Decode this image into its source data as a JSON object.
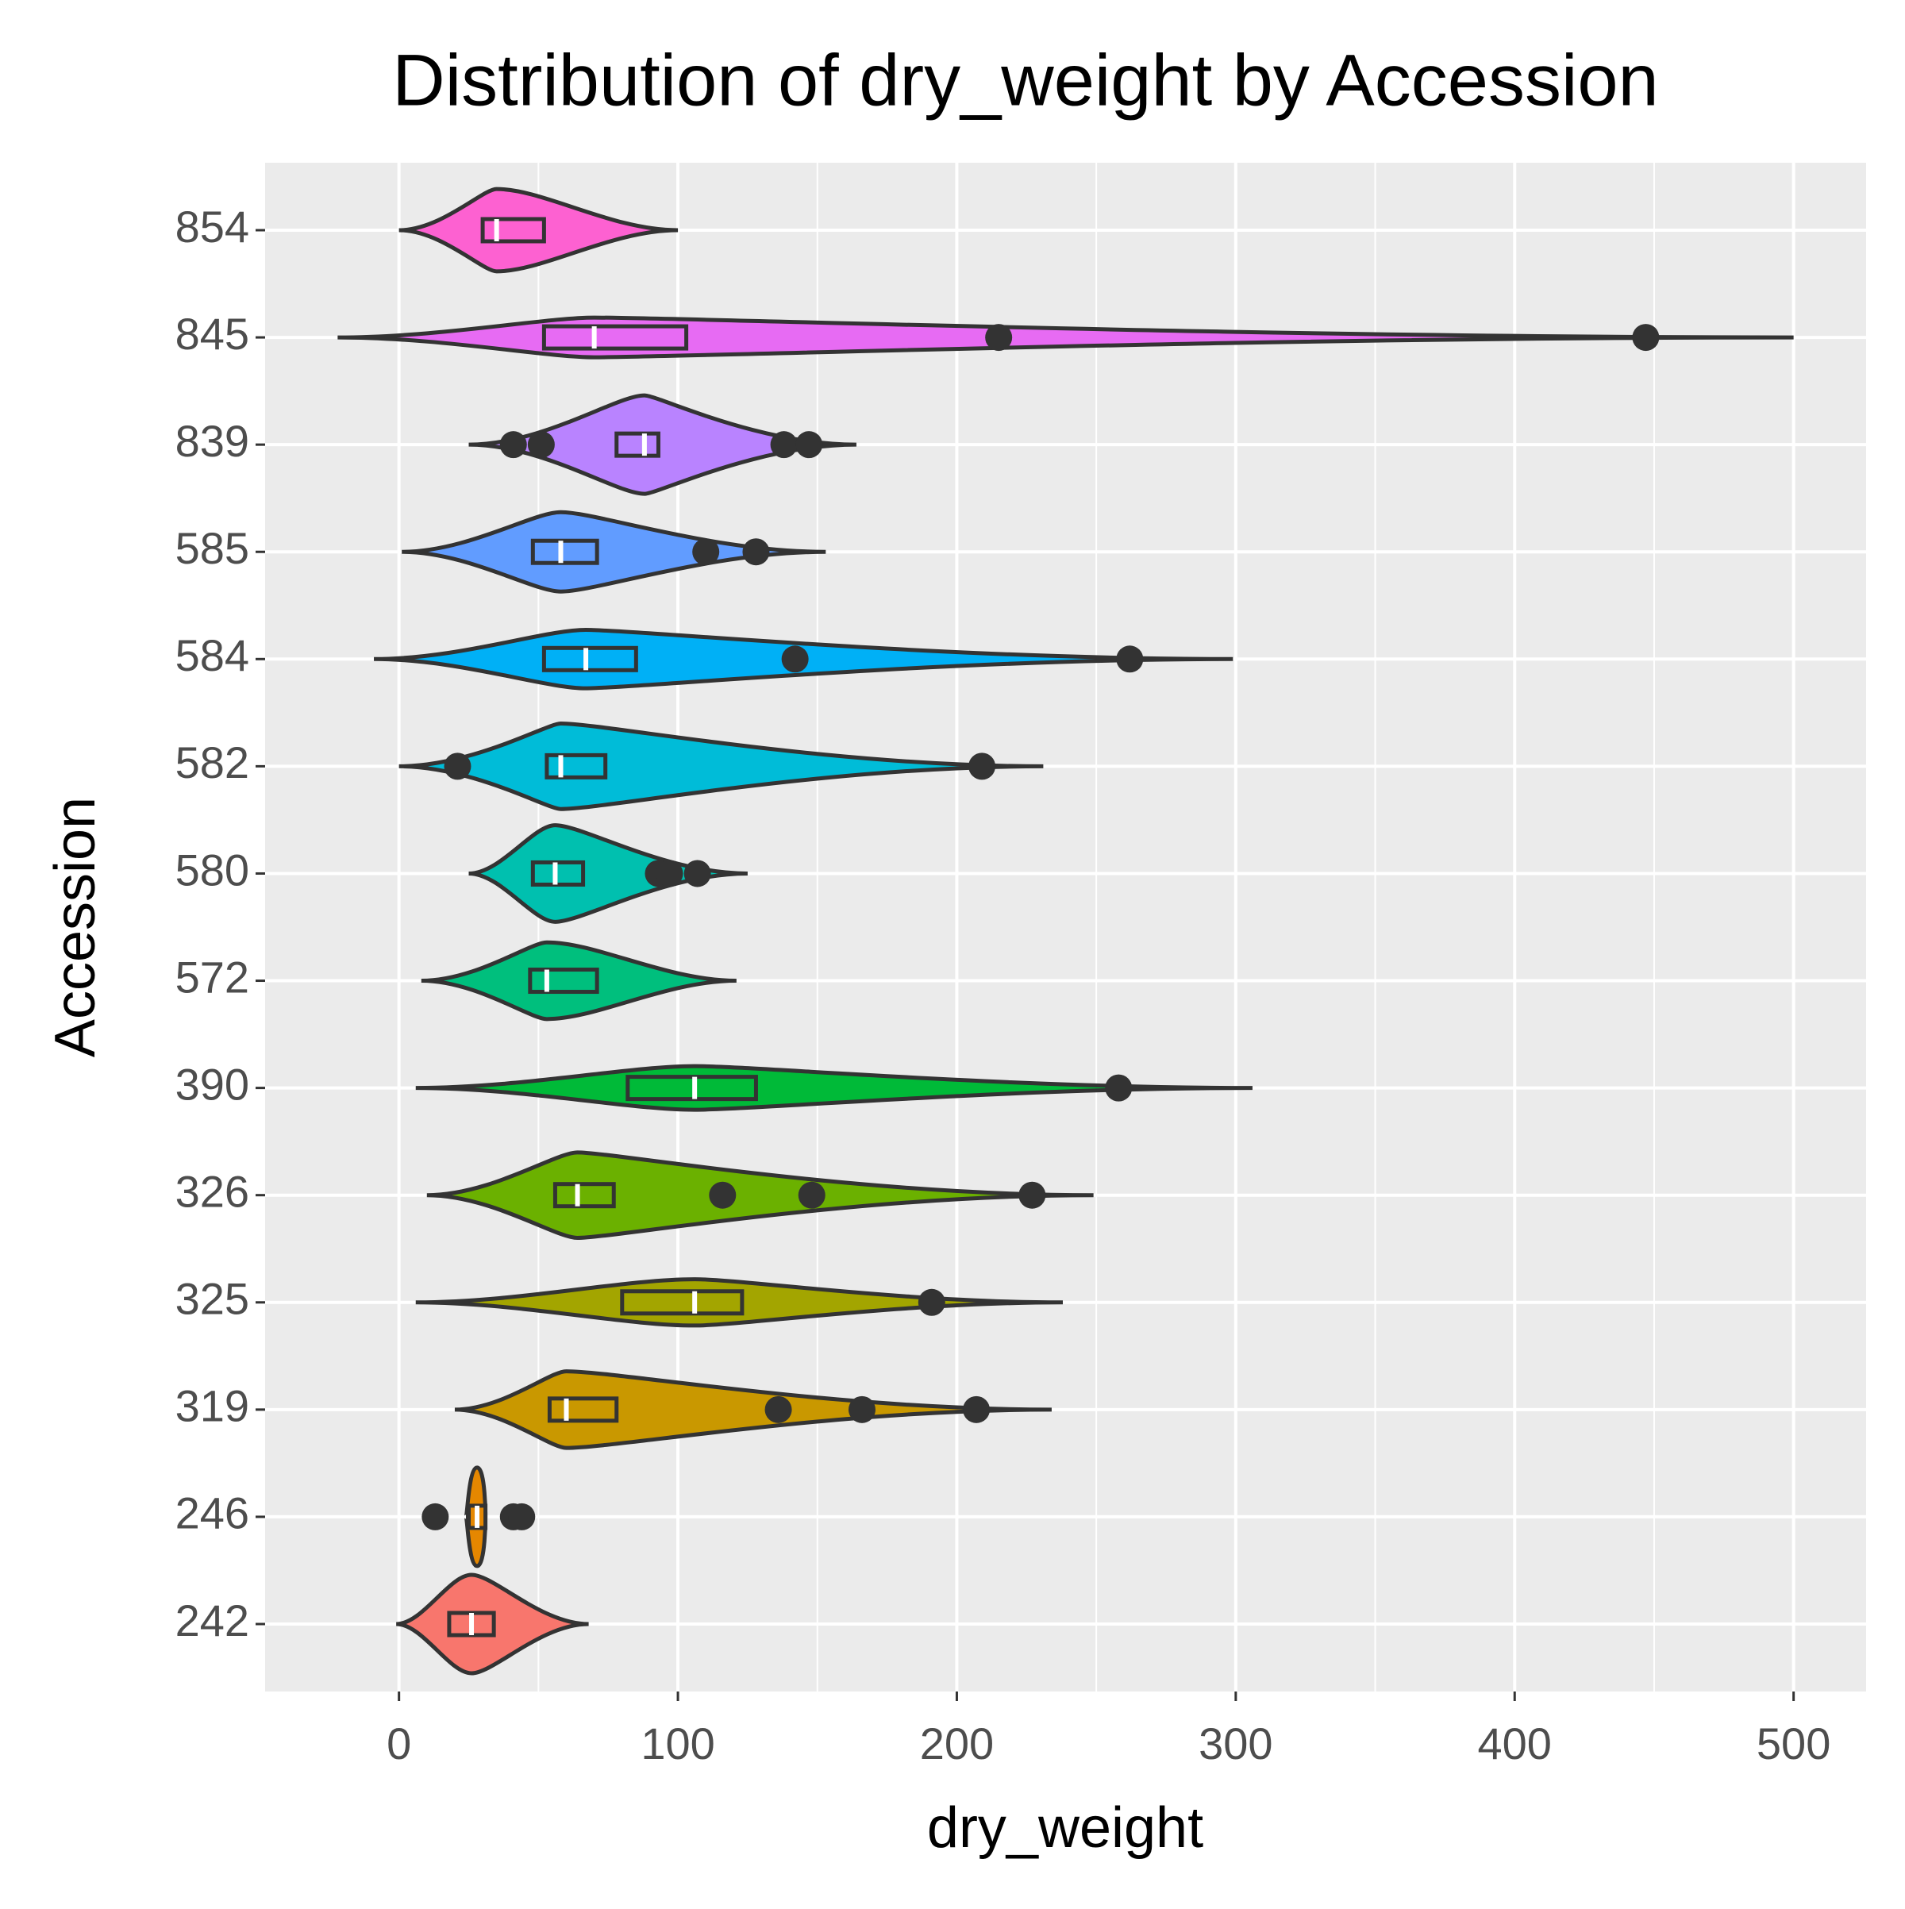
{
  "chart_data": {
    "type": "violin",
    "title": "Distribution of dry_weight by Accession",
    "x_label": "dry_weight",
    "y_label": "Accession",
    "categories": [
      "242",
      "246",
      "319",
      "325",
      "326",
      "390",
      "572",
      "580",
      "582",
      "584",
      "585",
      "839",
      "845",
      "854"
    ],
    "colors": [
      "#F8766D",
      "#E58700",
      "#C99800",
      "#A3A500",
      "#6BB100",
      "#00BA38",
      "#00BF7D",
      "#00C0AF",
      "#00BCD8",
      "#00B0F6",
      "#619CFF",
      "#B983FF",
      "#E76BF3",
      "#FD61D1"
    ],
    "violin_min": [
      -1,
      24,
      20,
      6,
      10,
      6,
      8,
      25,
      0,
      -9,
      1,
      25,
      -22,
      0
    ],
    "violin_max": [
      68,
      31,
      234,
      238,
      249,
      306,
      121,
      125,
      231,
      299,
      153,
      164,
      500,
      100
    ],
    "q1": [
      18,
      25,
      54,
      80,
      56,
      82,
      47,
      48,
      53,
      52,
      48,
      78,
      52,
      30
    ],
    "median": [
      26,
      28,
      60,
      106,
      64,
      106,
      53,
      56,
      58,
      67,
      58,
      88,
      70,
      35
    ],
    "q3": [
      34,
      31,
      78,
      123,
      77,
      128,
      71,
      66,
      74,
      85,
      71,
      93,
      103,
      52
    ],
    "outliers": [
      [],
      [
        13,
        41,
        44
      ],
      [
        136,
        166,
        207
      ],
      [
        191
      ],
      [
        116,
        148,
        227
      ],
      [
        258
      ],
      [],
      [
        93,
        97,
        107
      ],
      [
        21,
        209
      ],
      [
        142,
        262
      ],
      [
        110,
        128
      ],
      [
        41,
        51,
        138,
        147
      ],
      [
        215,
        447
      ],
      []
    ],
    "xlim": [
      -48,
      526
    ],
    "xticks": [
      0,
      100,
      200,
      300,
      400,
      500
    ],
    "x_minor_grid": [
      50,
      150,
      250,
      350,
      450
    ],
    "grid": true
  }
}
